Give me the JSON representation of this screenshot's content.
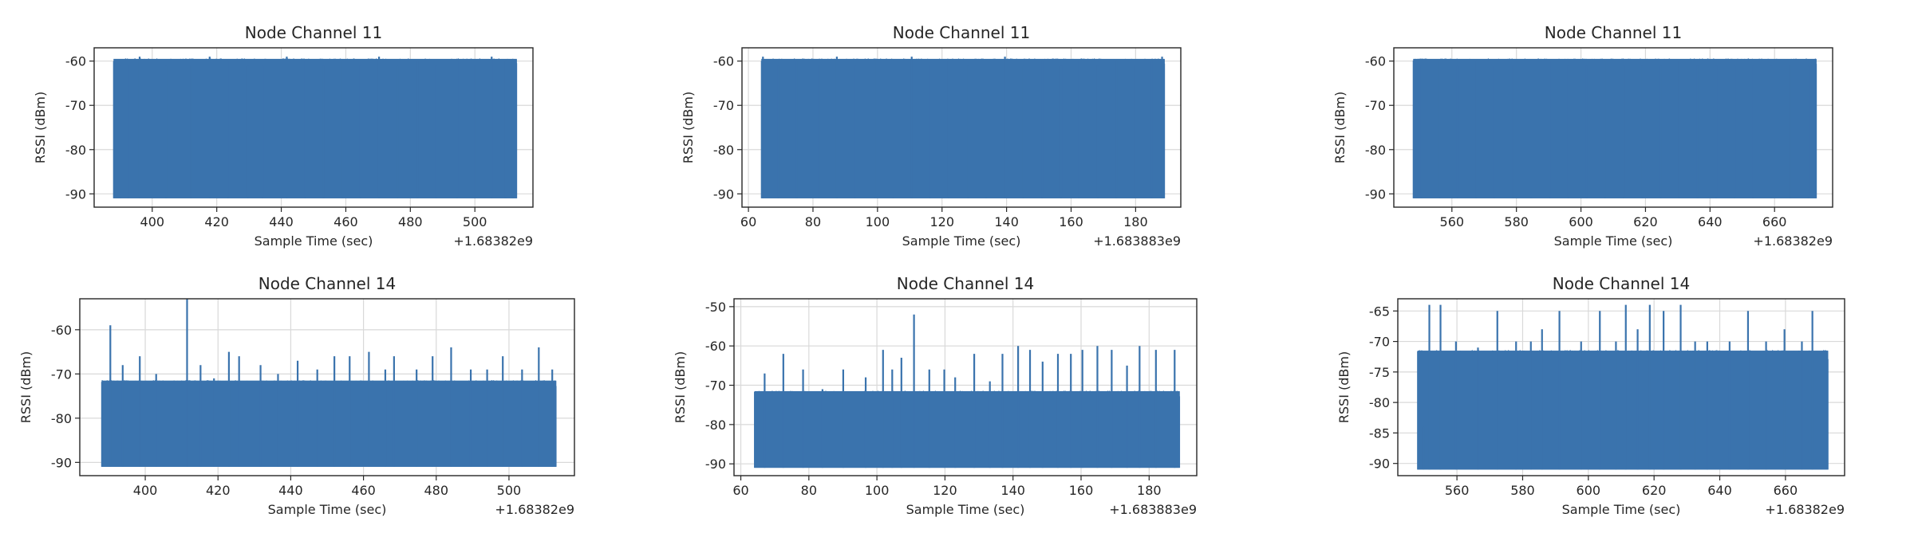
{
  "chart_data": [
    {
      "type": "line",
      "title": "Node Channel 11",
      "xlabel": "Sample Time (sec)",
      "ylabel": "RSSI (dBm)",
      "x_offset_label": "+1.68382e9",
      "xlim": [
        382,
        518
      ],
      "ylim": [
        -93,
        -57
      ],
      "xticks": [
        400,
        420,
        440,
        460,
        480,
        500
      ],
      "yticks": [
        -60,
        -70,
        -80,
        -90
      ],
      "grid": true,
      "series": [
        {
          "x_range": [
            388,
            513
          ],
          "baseline": -91,
          "typical_max": -61,
          "spikes": [
            [
              390.2,
              -61
            ],
            [
              392.5,
              -61
            ],
            [
              396.1,
              -59
            ],
            [
              404.3,
              -61
            ],
            [
              412.0,
              -61
            ],
            [
              417.8,
              -59
            ],
            [
              423.5,
              -60
            ],
            [
              429.6,
              -61
            ],
            [
              434.2,
              -61
            ],
            [
              441.7,
              -59
            ],
            [
              447.4,
              -60
            ],
            [
              453.1,
              -61
            ],
            [
              459.0,
              -60
            ],
            [
              464.6,
              -61
            ],
            [
              470.3,
              -59
            ],
            [
              476.0,
              -61
            ],
            [
              482.2,
              -60
            ],
            [
              488.0,
              -61
            ],
            [
              494.5,
              -60
            ],
            [
              500.1,
              -61
            ],
            [
              505.2,
              -59
            ],
            [
              509.5,
              -60
            ],
            [
              511.8,
              -60
            ]
          ],
          "color": "#3a73ad"
        }
      ]
    },
    {
      "type": "line",
      "title": "Node Channel 11",
      "xlabel": "Sample Time (sec)",
      "ylabel": "RSSI (dBm)",
      "x_offset_label": "+1.683883e9",
      "xlim": [
        58,
        194
      ],
      "ylim": [
        -93,
        -57
      ],
      "xticks": [
        60,
        80,
        100,
        120,
        140,
        160,
        180
      ],
      "yticks": [
        -60,
        -70,
        -80,
        -90
      ],
      "grid": true,
      "series": [
        {
          "x_range": [
            64,
            189
          ],
          "baseline": -91,
          "typical_max": -61,
          "spikes": [
            [
              64.5,
              -59
            ],
            [
              69.3,
              -61
            ],
            [
              75.0,
              -60
            ],
            [
              81.8,
              -61
            ],
            [
              87.4,
              -59
            ],
            [
              93.0,
              -61
            ],
            [
              99.2,
              -60
            ],
            [
              104.8,
              -60
            ],
            [
              110.6,
              -59
            ],
            [
              116.3,
              -61
            ],
            [
              122.0,
              -60
            ],
            [
              128.1,
              -61
            ],
            [
              133.7,
              -60
            ],
            [
              139.5,
              -59
            ],
            [
              145.2,
              -61
            ],
            [
              151.0,
              -60
            ],
            [
              156.9,
              -61
            ],
            [
              162.4,
              -60
            ],
            [
              168.3,
              -61
            ],
            [
              174.0,
              -60
            ],
            [
              179.6,
              -61
            ],
            [
              185.0,
              -60
            ],
            [
              188.2,
              -59
            ]
          ],
          "color": "#3a73ad"
        }
      ]
    },
    {
      "type": "line",
      "title": "Node Channel 11",
      "xlabel": "Sample Time (sec)",
      "ylabel": "RSSI (dBm)",
      "x_offset_label": "+1.68382e9",
      "xlim": [
        542,
        678
      ],
      "ylim": [
        -93,
        -57
      ],
      "xticks": [
        560,
        580,
        600,
        620,
        640,
        660
      ],
      "yticks": [
        -60,
        -70,
        -80,
        -90
      ],
      "grid": true,
      "series": [
        {
          "x_range": [
            548,
            673
          ],
          "baseline": -91,
          "typical_max": -61,
          "spikes": [
            [
              550.5,
              -61
            ],
            [
              556.2,
              -60
            ],
            [
              561.8,
              -61
            ],
            [
              567.5,
              -60
            ],
            [
              573.1,
              -61
            ],
            [
              578.9,
              -61
            ],
            [
              584.6,
              -60
            ],
            [
              590.3,
              -60
            ],
            [
              596.0,
              -61
            ],
            [
              601.8,
              -61
            ],
            [
              607.5,
              -60
            ],
            [
              613.2,
              -61
            ],
            [
              619.0,
              -61
            ],
            [
              624.7,
              -61
            ],
            [
              630.4,
              -60
            ],
            [
              636.1,
              -61
            ],
            [
              641.9,
              -61
            ],
            [
              647.6,
              -61
            ],
            [
              653.3,
              -61
            ],
            [
              659.0,
              -61
            ],
            [
              664.8,
              -61
            ],
            [
              670.5,
              -61
            ]
          ],
          "color": "#3a73ad"
        }
      ]
    },
    {
      "type": "line",
      "title": "Node Channel 14",
      "xlabel": "Sample Time (sec)",
      "ylabel": "RSSI (dBm)",
      "x_offset_label": "+1.68382e9",
      "xlim": [
        382,
        518
      ],
      "ylim": [
        -93,
        -53
      ],
      "xticks": [
        400,
        420,
        440,
        460,
        480,
        500
      ],
      "yticks": [
        -60,
        -70,
        -80,
        -90
      ],
      "grid": true,
      "series": [
        {
          "x_range": [
            388,
            513
          ],
          "baseline": -91,
          "typical_max": -73,
          "spikes": [
            [
              390.4,
              -59
            ],
            [
              393.8,
              -68
            ],
            [
              398.5,
              -66
            ],
            [
              403.0,
              -70
            ],
            [
              411.5,
              -53
            ],
            [
              415.2,
              -68
            ],
            [
              418.9,
              -71
            ],
            [
              423.0,
              -65
            ],
            [
              425.8,
              -66
            ],
            [
              431.7,
              -68
            ],
            [
              436.5,
              -70
            ],
            [
              441.9,
              -67
            ],
            [
              447.3,
              -69
            ],
            [
              452.0,
              -66
            ],
            [
              456.2,
              -66
            ],
            [
              461.5,
              -65
            ],
            [
              466.0,
              -69
            ],
            [
              468.4,
              -66
            ],
            [
              474.6,
              -69
            ],
            [
              479.0,
              -66
            ],
            [
              484.1,
              -64
            ],
            [
              489.5,
              -69
            ],
            [
              494.0,
              -69
            ],
            [
              498.3,
              -66
            ],
            [
              503.6,
              -69
            ],
            [
              508.2,
              -64
            ],
            [
              511.9,
              -69
            ]
          ],
          "color": "#3a73ad"
        }
      ]
    },
    {
      "type": "line",
      "title": "Node Channel 14",
      "xlabel": "Sample Time (sec)",
      "ylabel": "RSSI (dBm)",
      "x_offset_label": "+1.683883e9",
      "xlim": [
        58,
        194
      ],
      "ylim": [
        -93,
        -48
      ],
      "xticks": [
        60,
        80,
        100,
        120,
        140,
        160,
        180
      ],
      "yticks": [
        -50,
        -60,
        -70,
        -80,
        -90
      ],
      "grid": true,
      "series": [
        {
          "x_range": [
            64,
            189
          ],
          "baseline": -91,
          "typical_max": -73,
          "spikes": [
            [
              67.0,
              -67
            ],
            [
              72.5,
              -62
            ],
            [
              78.3,
              -66
            ],
            [
              84.0,
              -71
            ],
            [
              90.1,
              -66
            ],
            [
              96.7,
              -68
            ],
            [
              101.8,
              -61
            ],
            [
              104.5,
              -66
            ],
            [
              107.2,
              -63
            ],
            [
              110.9,
              -52
            ],
            [
              115.4,
              -66
            ],
            [
              119.8,
              -66
            ],
            [
              123.0,
              -68
            ],
            [
              128.6,
              -62
            ],
            [
              133.2,
              -69
            ],
            [
              136.9,
              -62
            ],
            [
              141.5,
              -60
            ],
            [
              145.0,
              -61
            ],
            [
              148.7,
              -64
            ],
            [
              153.2,
              -62
            ],
            [
              157.0,
              -62
            ],
            [
              160.4,
              -61
            ],
            [
              164.8,
              -60
            ],
            [
              169.0,
              -61
            ],
            [
              173.5,
              -65
            ],
            [
              177.2,
              -60
            ],
            [
              182.0,
              -61
            ],
            [
              187.5,
              -61
            ]
          ],
          "color": "#3a73ad"
        }
      ]
    },
    {
      "type": "line",
      "title": "Node Channel 14",
      "xlabel": "Sample Time (sec)",
      "ylabel": "RSSI (dBm)",
      "x_offset_label": "+1.68382e9",
      "xlim": [
        542,
        678
      ],
      "ylim": [
        -92,
        -63
      ],
      "xticks": [
        560,
        580,
        600,
        620,
        640,
        660
      ],
      "yticks": [
        -65,
        -70,
        -75,
        -80,
        -85,
        -90
      ],
      "grid": true,
      "series": [
        {
          "x_range": [
            548,
            673
          ],
          "baseline": -91,
          "typical_max": -73,
          "spikes": [
            [
              549.8,
              -84
            ],
            [
              551.6,
              -64
            ],
            [
              555.0,
              -64
            ],
            [
              559.7,
              -70
            ],
            [
              566.4,
              -71
            ],
            [
              572.3,
              -65
            ],
            [
              578.0,
              -70
            ],
            [
              582.5,
              -70
            ],
            [
              585.9,
              -68
            ],
            [
              591.2,
              -65
            ],
            [
              597.8,
              -70
            ],
            [
              603.5,
              -65
            ],
            [
              608.4,
              -70
            ],
            [
              611.4,
              -64
            ],
            [
              615.0,
              -68
            ],
            [
              618.7,
              -64
            ],
            [
              622.9,
              -65
            ],
            [
              628.1,
              -64
            ],
            [
              632.5,
              -70
            ],
            [
              636.2,
              -70
            ],
            [
              643.0,
              -70
            ],
            [
              648.6,
              -65
            ],
            [
              654.1,
              -70
            ],
            [
              659.7,
              -68
            ],
            [
              665.0,
              -70
            ],
            [
              668.2,
              -65
            ]
          ],
          "color": "#3a73ad"
        }
      ]
    }
  ]
}
